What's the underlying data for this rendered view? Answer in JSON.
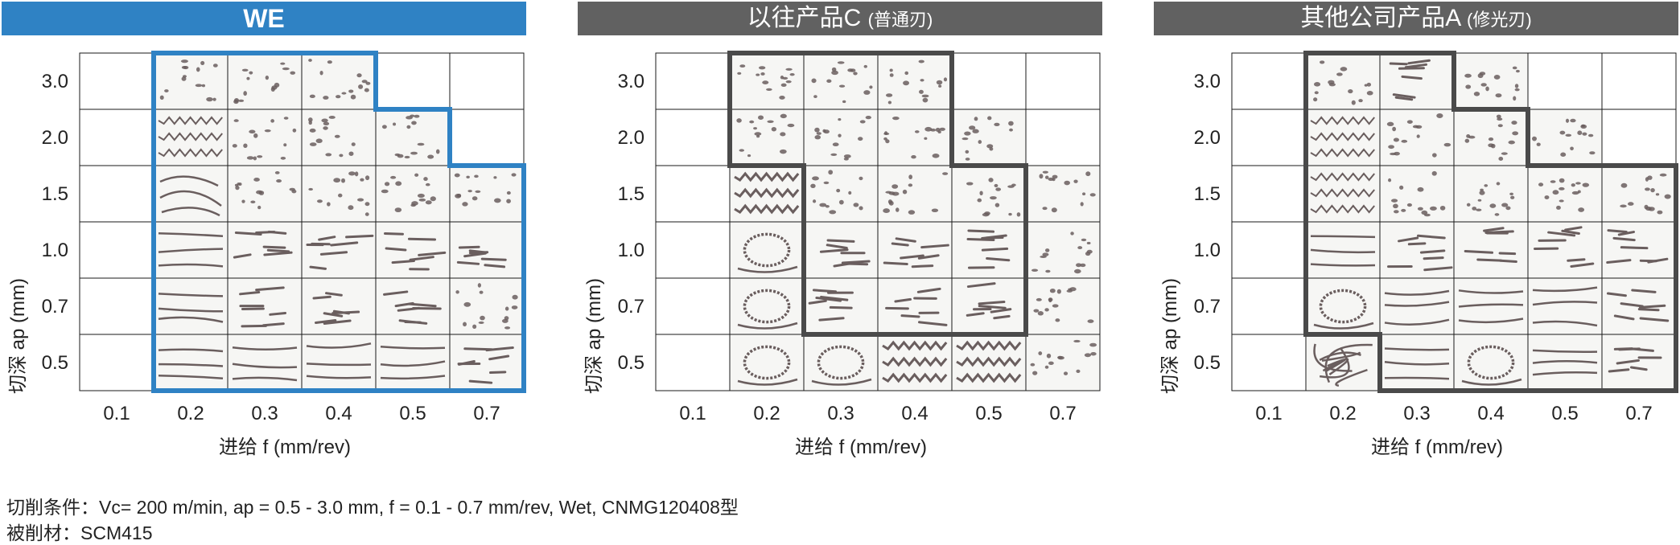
{
  "panels": [
    {
      "title": "WE",
      "title_sub": "",
      "header_color": "#2f82c4",
      "outline_color": "#2f82c4",
      "ylabel": "切深 ap (mm)",
      "xlabel": "进给 f (mm/rev)"
    },
    {
      "title": "以往产品C",
      "title_sub": "(普通刃)",
      "header_color": "#616161",
      "outline_color": "#4a4a4a",
      "ylabel": "切深 ap (mm)",
      "xlabel": "进给 f (mm/rev)"
    },
    {
      "title": "其他公司产品A",
      "title_sub": "(修光刃)",
      "header_color": "#616161",
      "outline_color": "#4a4a4a",
      "ylabel": "切深 ap (mm)",
      "xlabel": "进给 f (mm/rev)"
    }
  ],
  "chart_data": {
    "type": "heatmap",
    "x_ticks": [
      "0.1",
      "0.2",
      "0.3",
      "0.4",
      "0.5",
      "0.7"
    ],
    "y_ticks": [
      "3.0",
      "2.0",
      "1.5",
      "1.0",
      "0.7",
      "0.5"
    ],
    "cell_legend": "chip photo present where value is not 'empty'; cells inside outlined region = good chip control",
    "grids": [
      {
        "panel": "WE",
        "cells": [
          [
            "empty",
            "dots",
            "dots",
            "dots",
            "empty",
            "empty"
          ],
          [
            "empty",
            "wavy",
            "dots",
            "dots",
            "dots",
            "empty"
          ],
          [
            "empty",
            "curl",
            "dots",
            "dots",
            "dots",
            "dots"
          ],
          [
            "empty",
            "long",
            "short",
            "short",
            "short",
            "short"
          ],
          [
            "empty",
            "long",
            "short",
            "short",
            "short",
            "dots"
          ],
          [
            "empty",
            "long",
            "long",
            "long",
            "long",
            "short"
          ]
        ]
      },
      {
        "panel": "以往产品C",
        "cells": [
          [
            "empty",
            "dots",
            "dots",
            "dots",
            "empty",
            "empty"
          ],
          [
            "empty",
            "dots",
            "dots",
            "dots",
            "dots",
            "empty"
          ],
          [
            "empty",
            "spring",
            "dots",
            "dots",
            "dots",
            "dots"
          ],
          [
            "empty",
            "coil",
            "short",
            "short",
            "short",
            "dots"
          ],
          [
            "empty",
            "coil",
            "short",
            "short",
            "short",
            "dots"
          ],
          [
            "empty",
            "coil",
            "coil",
            "spring",
            "spring",
            "dots"
          ]
        ]
      },
      {
        "panel": "其他公司产品A",
        "cells": [
          [
            "empty",
            "dots",
            "short",
            "dots",
            "empty",
            "empty"
          ],
          [
            "empty",
            "wavy",
            "dots",
            "dots",
            "dots",
            "empty"
          ],
          [
            "empty",
            "wavy",
            "dots",
            "dots",
            "dots",
            "dots"
          ],
          [
            "empty",
            "long",
            "short",
            "short",
            "short",
            "short"
          ],
          [
            "empty",
            "coil",
            "long",
            "long",
            "long",
            "short"
          ],
          [
            "empty",
            "tangle",
            "long",
            "coil",
            "long",
            "short"
          ]
        ]
      }
    ]
  },
  "footer": {
    "line1": "切削条件：Vc= 200 m/min,  ap = 0.5 - 3.0 mm,  f = 0.1 - 0.7 mm/rev, Wet,  CNMG120408型",
    "line2": "被削材：SCM415"
  }
}
